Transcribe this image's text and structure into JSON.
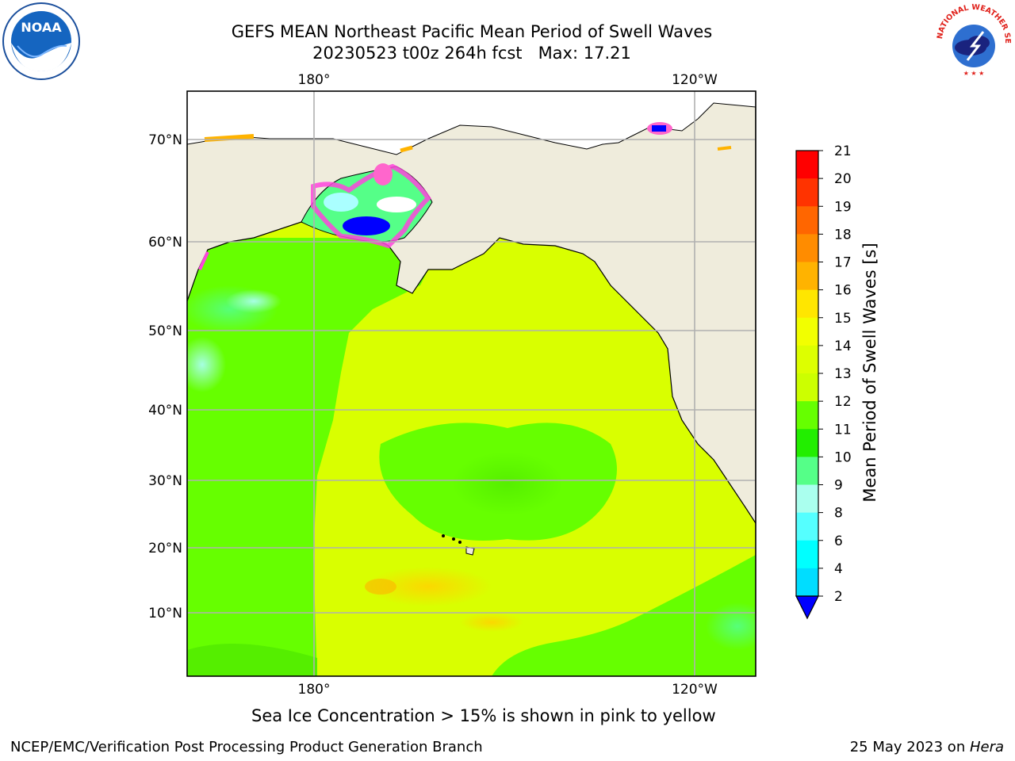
{
  "title": {
    "line1": "GEFS MEAN Northeast Pacific Mean Period of Swell Waves",
    "line2": "20230523 t00z 264h fcst   Max: 17.21"
  },
  "map": {
    "top_lon_labels": [
      "180°",
      "120°W"
    ],
    "bottom_lon_labels": [
      "180°",
      "120°W"
    ],
    "lat_labels": [
      "70°N",
      "60°N",
      "50°N",
      "40°N",
      "30°N",
      "20°N",
      "10°N"
    ],
    "colors": {
      "land": "#efecdc",
      "ocean_green": "#66ff00",
      "ocean_yellow": "#d9ff00",
      "grid": "#b0b0b0"
    }
  },
  "colorbar": {
    "title": "Mean Period of Swell Waves [s]",
    "ticks": [
      "21",
      "20",
      "19",
      "18",
      "17",
      "16",
      "15",
      "14",
      "13",
      "12",
      "11",
      "10",
      "9",
      "8",
      "6",
      "4",
      "2"
    ],
    "colors": [
      "#ff0000",
      "#ff3300",
      "#ff6600",
      "#ff8c00",
      "#ffb300",
      "#ffe600",
      "#f2ff00",
      "#ddff00",
      "#ccff00",
      "#66ff00",
      "#22ee00",
      "#55ff88",
      "#aaffee",
      "#55ffff",
      "#00ffff",
      "#00ddff",
      "#0077ff",
      "#0000ff"
    ]
  },
  "notes": {
    "sea_ice": "Sea Ice Concentration > 15% is shown in pink to yellow"
  },
  "footer": {
    "left": "NCEP/EMC/Verification Post Processing Product Generation Branch",
    "right_date": "25 May 2023 on ",
    "right_machine": "Hera"
  },
  "logos": {
    "noaa_text": "NOAA",
    "nws_text": "NATIONAL WEATHER SERVICE"
  }
}
